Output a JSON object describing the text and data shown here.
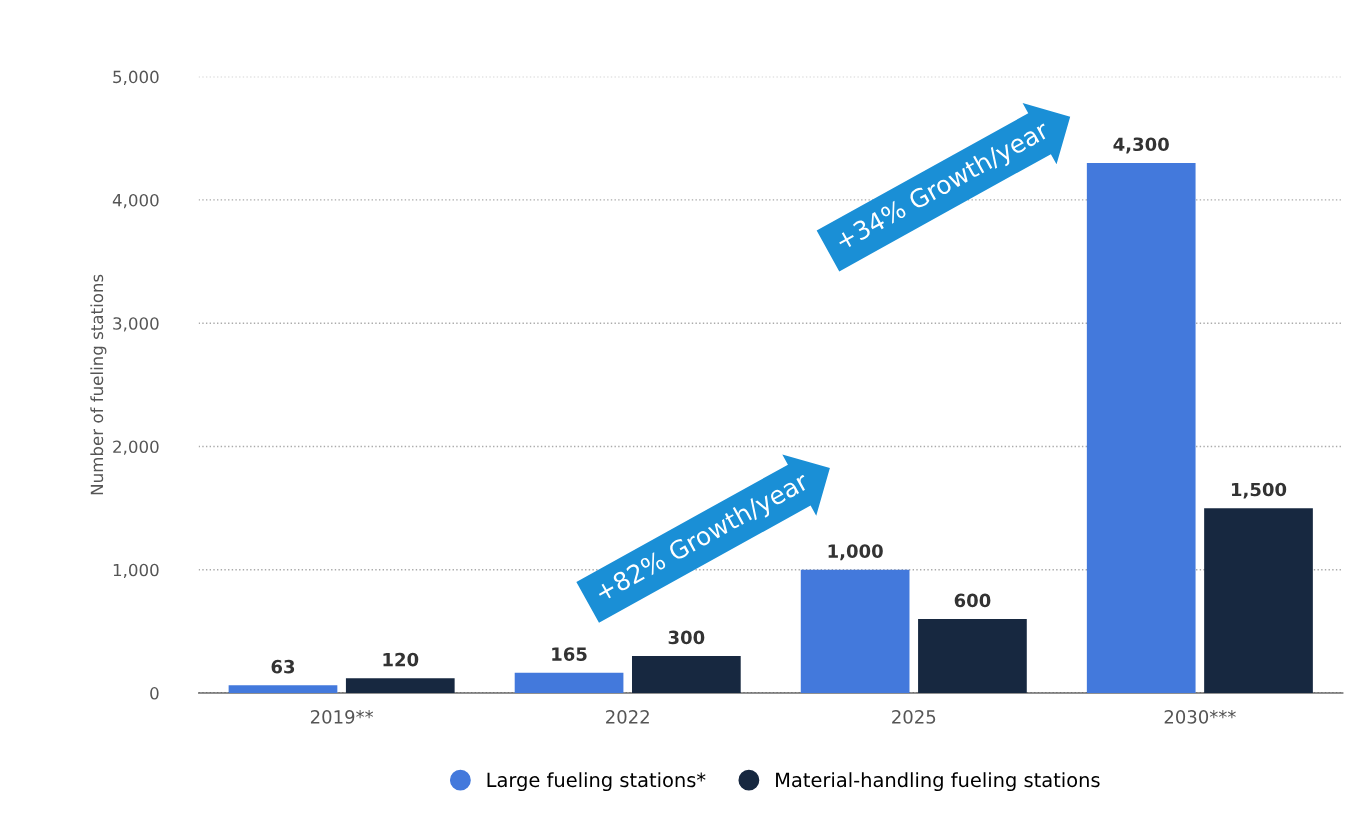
{
  "chart_data": {
    "type": "bar",
    "ylabel": "Number of fueling stations",
    "categories": [
      "2019**",
      "2022",
      "2025",
      "2030***"
    ],
    "series": [
      {
        "name": "Large fueling stations*",
        "color": "#4379dc",
        "values": [
          63,
          165,
          1000,
          4300
        ]
      },
      {
        "name": "Material-handling fueling stations",
        "color": "#172840",
        "values": [
          120,
          300,
          600,
          1500
        ]
      }
    ],
    "value_labels": [
      [
        "63",
        "165",
        "1,000",
        "4,300"
      ],
      [
        "120",
        "300",
        "600",
        "1,500"
      ]
    ],
    "ylim": [
      0,
      5000
    ],
    "yticks": [
      {
        "value": 0,
        "label": "0"
      },
      {
        "value": 1000,
        "label": "1,000"
      },
      {
        "value": 2000,
        "label": "2,000"
      },
      {
        "value": 3000,
        "label": "3,000"
      },
      {
        "value": 4000,
        "label": "4,000"
      },
      {
        "value": 5000,
        "label": "5,000"
      }
    ],
    "grid": "y",
    "legend": "bottom",
    "annotations": [
      "+82% Growth/year",
      "+34% Growth/year"
    ]
  }
}
